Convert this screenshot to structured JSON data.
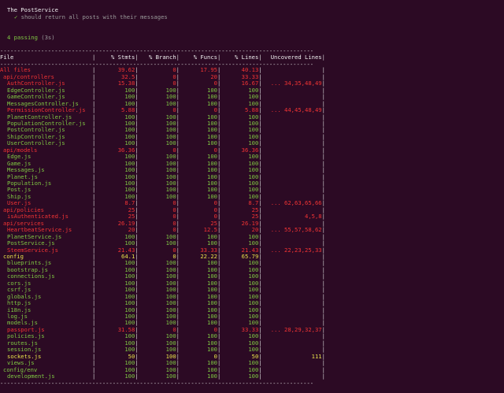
{
  "mocha": {
    "suite_title": "The PostService",
    "check_mark": "✓",
    "test_title": "should return all posts with their messages",
    "passing": "4 passing",
    "duration": "(3s)"
  },
  "table": {
    "headers": {
      "file": "File",
      "stmts": "% Stmts",
      "branch": "% Branch",
      "funcs": "% Funcs",
      "lines": "% Lines",
      "uncovered": "Uncovered Lines"
    },
    "rows": [
      {
        "file": "All files",
        "stmts": "39.62",
        "branch": "0",
        "funcs": "17.95",
        "lines": "40.13",
        "uncovered": "",
        "color": "red",
        "indent": 0
      },
      {
        "file": "api/controllers",
        "stmts": "32.5",
        "branch": "0",
        "funcs": "20",
        "lines": "33.33",
        "uncovered": "",
        "color": "red",
        "indent": 1
      },
      {
        "file": "AuthController.js",
        "stmts": "15.38",
        "branch": "0",
        "funcs": "0",
        "lines": "16.67",
        "uncovered": "... 34,35,48,49",
        "color": "red",
        "indent": 2
      },
      {
        "file": "EdgeController.js",
        "stmts": "100",
        "branch": "100",
        "funcs": "100",
        "lines": "100",
        "uncovered": "",
        "color": "green",
        "indent": 2
      },
      {
        "file": "GameController.js",
        "stmts": "100",
        "branch": "100",
        "funcs": "100",
        "lines": "100",
        "uncovered": "",
        "color": "green",
        "indent": 2
      },
      {
        "file": "MessagesController.js",
        "stmts": "100",
        "branch": "100",
        "funcs": "100",
        "lines": "100",
        "uncovered": "",
        "color": "green",
        "indent": 2
      },
      {
        "file": "PermissionController.js",
        "stmts": "5.88",
        "branch": "0",
        "funcs": "0",
        "lines": "5.88",
        "uncovered": "... 44,45,48,49",
        "color": "red",
        "indent": 2
      },
      {
        "file": "PlanetController.js",
        "stmts": "100",
        "branch": "100",
        "funcs": "100",
        "lines": "100",
        "uncovered": "",
        "color": "green",
        "indent": 2
      },
      {
        "file": "PopulationController.js",
        "stmts": "100",
        "branch": "100",
        "funcs": "100",
        "lines": "100",
        "uncovered": "",
        "color": "green",
        "indent": 2
      },
      {
        "file": "PostController.js",
        "stmts": "100",
        "branch": "100",
        "funcs": "100",
        "lines": "100",
        "uncovered": "",
        "color": "green",
        "indent": 2
      },
      {
        "file": "ShipController.js",
        "stmts": "100",
        "branch": "100",
        "funcs": "100",
        "lines": "100",
        "uncovered": "",
        "color": "green",
        "indent": 2
      },
      {
        "file": "UserController.js",
        "stmts": "100",
        "branch": "100",
        "funcs": "100",
        "lines": "100",
        "uncovered": "",
        "color": "green",
        "indent": 2
      },
      {
        "file": "api/models",
        "stmts": "36.36",
        "branch": "0",
        "funcs": "0",
        "lines": "36.36",
        "uncovered": "",
        "color": "red",
        "indent": 1
      },
      {
        "file": "Edge.js",
        "stmts": "100",
        "branch": "100",
        "funcs": "100",
        "lines": "100",
        "uncovered": "",
        "color": "green",
        "indent": 2
      },
      {
        "file": "Game.js",
        "stmts": "100",
        "branch": "100",
        "funcs": "100",
        "lines": "100",
        "uncovered": "",
        "color": "green",
        "indent": 2
      },
      {
        "file": "Messages.js",
        "stmts": "100",
        "branch": "100",
        "funcs": "100",
        "lines": "100",
        "uncovered": "",
        "color": "green",
        "indent": 2
      },
      {
        "file": "Planet.js",
        "stmts": "100",
        "branch": "100",
        "funcs": "100",
        "lines": "100",
        "uncovered": "",
        "color": "green",
        "indent": 2
      },
      {
        "file": "Population.js",
        "stmts": "100",
        "branch": "100",
        "funcs": "100",
        "lines": "100",
        "uncovered": "",
        "color": "green",
        "indent": 2
      },
      {
        "file": "Post.js",
        "stmts": "100",
        "branch": "100",
        "funcs": "100",
        "lines": "100",
        "uncovered": "",
        "color": "green",
        "indent": 2
      },
      {
        "file": "Ship.js",
        "stmts": "100",
        "branch": "100",
        "funcs": "100",
        "lines": "100",
        "uncovered": "",
        "color": "green",
        "indent": 2
      },
      {
        "file": "User.js",
        "stmts": "8.7",
        "branch": "0",
        "funcs": "0",
        "lines": "8.7",
        "uncovered": "... 62,63,65,66",
        "color": "red",
        "indent": 2
      },
      {
        "file": "api/policies",
        "stmts": "25",
        "branch": "0",
        "funcs": "0",
        "lines": "25",
        "uncovered": "",
        "color": "red",
        "indent": 1
      },
      {
        "file": "isAuthenticated.js",
        "stmts": "25",
        "branch": "0",
        "funcs": "0",
        "lines": "25",
        "uncovered": "4,5,8",
        "color": "red",
        "indent": 2
      },
      {
        "file": "api/services",
        "stmts": "26.19",
        "branch": "0",
        "funcs": "25",
        "lines": "26.19",
        "uncovered": "",
        "color": "red",
        "indent": 1
      },
      {
        "file": "HeartbeatService.js",
        "stmts": "20",
        "branch": "0",
        "funcs": "12.5",
        "lines": "20",
        "uncovered": "... 55,57,58,62",
        "color": "red",
        "indent": 2
      },
      {
        "file": "PlanetService.js",
        "stmts": "100",
        "branch": "100",
        "funcs": "100",
        "lines": "100",
        "uncovered": "",
        "color": "green",
        "indent": 2
      },
      {
        "file": "PostService.js",
        "stmts": "100",
        "branch": "100",
        "funcs": "100",
        "lines": "100",
        "uncovered": "",
        "color": "green",
        "indent": 2
      },
      {
        "file": "SteemService.js",
        "stmts": "21.43",
        "branch": "0",
        "funcs": "33.33",
        "lines": "21.43",
        "uncovered": "... 22,23,25,33",
        "color": "red",
        "indent": 2
      },
      {
        "file": "config",
        "stmts": "64.1",
        "branch": "0",
        "funcs": "22.22",
        "lines": "65.79",
        "uncovered": "",
        "color": "yellow",
        "indent": 1
      },
      {
        "file": "blueprints.js",
        "stmts": "100",
        "branch": "100",
        "funcs": "100",
        "lines": "100",
        "uncovered": "",
        "color": "green",
        "indent": 2
      },
      {
        "file": "bootstrap.js",
        "stmts": "100",
        "branch": "100",
        "funcs": "100",
        "lines": "100",
        "uncovered": "",
        "color": "green",
        "indent": 2
      },
      {
        "file": "connections.js",
        "stmts": "100",
        "branch": "100",
        "funcs": "100",
        "lines": "100",
        "uncovered": "",
        "color": "green",
        "indent": 2
      },
      {
        "file": "cors.js",
        "stmts": "100",
        "branch": "100",
        "funcs": "100",
        "lines": "100",
        "uncovered": "",
        "color": "green",
        "indent": 2
      },
      {
        "file": "csrf.js",
        "stmts": "100",
        "branch": "100",
        "funcs": "100",
        "lines": "100",
        "uncovered": "",
        "color": "green",
        "indent": 2
      },
      {
        "file": "globals.js",
        "stmts": "100",
        "branch": "100",
        "funcs": "100",
        "lines": "100",
        "uncovered": "",
        "color": "green",
        "indent": 2
      },
      {
        "file": "http.js",
        "stmts": "100",
        "branch": "100",
        "funcs": "100",
        "lines": "100",
        "uncovered": "",
        "color": "green",
        "indent": 2
      },
      {
        "file": "i18n.js",
        "stmts": "100",
        "branch": "100",
        "funcs": "100",
        "lines": "100",
        "uncovered": "",
        "color": "green",
        "indent": 2
      },
      {
        "file": "log.js",
        "stmts": "100",
        "branch": "100",
        "funcs": "100",
        "lines": "100",
        "uncovered": "",
        "color": "green",
        "indent": 2
      },
      {
        "file": "models.js",
        "stmts": "100",
        "branch": "100",
        "funcs": "100",
        "lines": "100",
        "uncovered": "",
        "color": "green",
        "indent": 2
      },
      {
        "file": "passport.js",
        "stmts": "31.58",
        "branch": "0",
        "funcs": "0",
        "lines": "33.33",
        "uncovered": "... 28,29,32,37",
        "color": "red",
        "indent": 2
      },
      {
        "file": "policies.js",
        "stmts": "100",
        "branch": "100",
        "funcs": "100",
        "lines": "100",
        "uncovered": "",
        "color": "green",
        "indent": 2
      },
      {
        "file": "routes.js",
        "stmts": "100",
        "branch": "100",
        "funcs": "100",
        "lines": "100",
        "uncovered": "",
        "color": "green",
        "indent": 2
      },
      {
        "file": "session.js",
        "stmts": "100",
        "branch": "100",
        "funcs": "100",
        "lines": "100",
        "uncovered": "",
        "color": "green",
        "indent": 2
      },
      {
        "file": "sockets.js",
        "stmts": "50",
        "branch": "100",
        "funcs": "0",
        "lines": "50",
        "uncovered": "111",
        "color": "yellow",
        "indent": 2
      },
      {
        "file": "views.js",
        "stmts": "100",
        "branch": "100",
        "funcs": "100",
        "lines": "100",
        "uncovered": "",
        "color": "green",
        "indent": 2
      },
      {
        "file": "config/env",
        "stmts": "100",
        "branch": "100",
        "funcs": "100",
        "lines": "100",
        "uncovered": "",
        "color": "green",
        "indent": 1
      },
      {
        "file": "development.js",
        "stmts": "100",
        "branch": "100",
        "funcs": "100",
        "lines": "100",
        "uncovered": "",
        "color": "green",
        "indent": 2
      }
    ]
  },
  "colors": {
    "background": "#2c0a24",
    "green": "#7fc843",
    "red": "#f23434",
    "yellow": "#e8e24a",
    "grey": "#9a9a9a",
    "white": "#eeeeee"
  }
}
